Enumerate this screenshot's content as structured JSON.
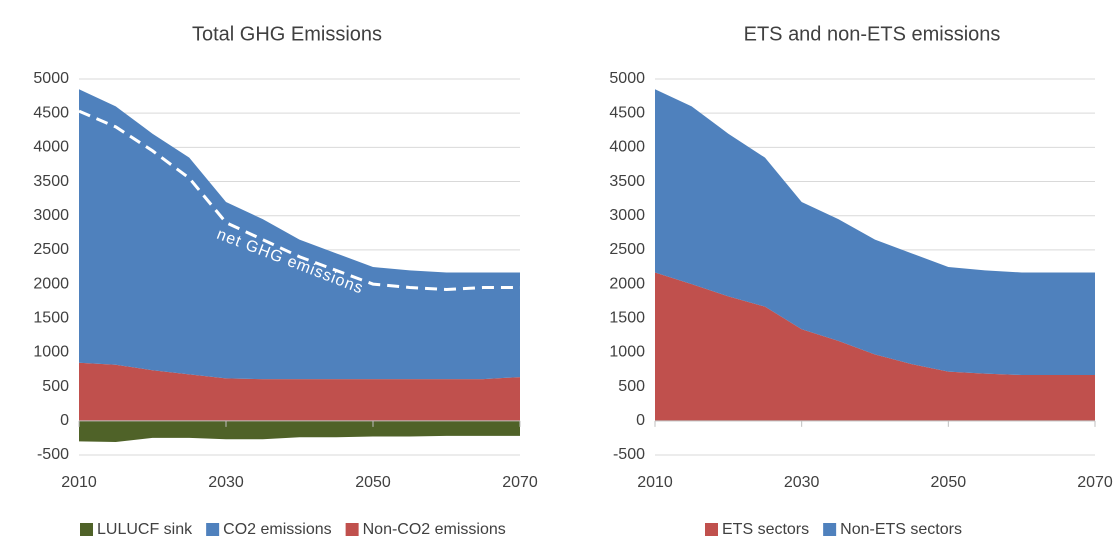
{
  "chart_data": [
    {
      "type": "area",
      "title": "Total GHG Emissions",
      "x": [
        2010,
        2015,
        2020,
        2025,
        2030,
        2035,
        2040,
        2045,
        2050,
        2055,
        2060,
        2065,
        2070
      ],
      "xlim": [
        2010,
        2070
      ],
      "xticks": [
        2010,
        2030,
        2050,
        2070
      ],
      "ylim": [
        -500,
        5000
      ],
      "yticks": [
        -500,
        0,
        500,
        1000,
        1500,
        2000,
        2500,
        3000,
        3500,
        4000,
        4500,
        5000
      ],
      "grid": true,
      "legend": "bottom",
      "legend_order": [
        0,
        2,
        1
      ],
      "series": [
        {
          "name": "LULUCF sink",
          "color": "#4f6228",
          "values": [
            -300,
            -310,
            -250,
            -250,
            -270,
            -270,
            -240,
            -240,
            -230,
            -230,
            -220,
            -220,
            -220
          ]
        },
        {
          "name": "Non-CO2 emissions",
          "color": "#c0504d",
          "values": [
            850,
            820,
            740,
            680,
            620,
            610,
            610,
            610,
            610,
            610,
            610,
            610,
            640
          ]
        },
        {
          "name": "CO2 emissions",
          "color": "#4f81bd",
          "values": [
            4000,
            3780,
            3460,
            3170,
            2580,
            2340,
            2040,
            1840,
            1640,
            1590,
            1560,
            1560,
            1530
          ]
        }
      ],
      "lines": [
        {
          "name": "net GHG emissions",
          "color": "#ffffff",
          "dashed": true,
          "values": [
            4530,
            4300,
            3950,
            3550,
            2900,
            2650,
            2400,
            2200,
            2000,
            1950,
            1920,
            1950,
            1950
          ]
        }
      ]
    },
    {
      "type": "area",
      "title": "ETS and non-ETS emissions",
      "x": [
        2010,
        2015,
        2020,
        2025,
        2030,
        2035,
        2040,
        2045,
        2050,
        2055,
        2060,
        2065,
        2070
      ],
      "xlim": [
        2010,
        2070
      ],
      "xticks": [
        2010,
        2030,
        2050,
        2070
      ],
      "ylim": [
        -500,
        5000
      ],
      "yticks": [
        -500,
        0,
        500,
        1000,
        1500,
        2000,
        2500,
        3000,
        3500,
        4000,
        4500,
        5000
      ],
      "grid": true,
      "legend": "bottom",
      "legend_order": [
        0,
        1
      ],
      "series": [
        {
          "name": "ETS sectors",
          "color": "#c0504d",
          "values": [
            2170,
            2000,
            1820,
            1670,
            1340,
            1170,
            970,
            830,
            720,
            690,
            670,
            670,
            670
          ]
        },
        {
          "name": "Non-ETS sectors",
          "color": "#4f81bd",
          "values": [
            2680,
            2600,
            2380,
            2180,
            1860,
            1780,
            1680,
            1620,
            1530,
            1510,
            1500,
            1500,
            1500
          ]
        }
      ]
    }
  ]
}
